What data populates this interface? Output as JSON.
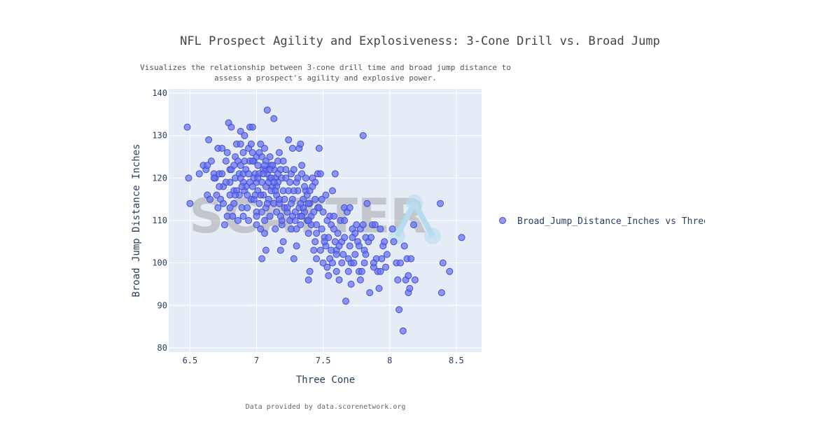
{
  "chart_data": {
    "type": "scatter",
    "title": "NFL Prospect Agility and Explosiveness: 3-Cone Drill vs. Broad Jump",
    "subtitle_lines": [
      "Visualizes the relationship between 3-cone drill time and broad jump distance to",
      "assess a prospect's agility and explosive power."
    ],
    "xlabel": "Three Cone",
    "ylabel": "Broad Jump Distance Inches",
    "xlim": [
      6.34,
      8.69
    ],
    "ylim": [
      79,
      141
    ],
    "xticks": [
      "6.5",
      "7",
      "7.5",
      "8",
      "8.5"
    ],
    "yticks": [
      "80",
      "90",
      "100",
      "110",
      "120",
      "130",
      "140"
    ],
    "grid": true,
    "legend": {
      "position": "right",
      "label": "Broad_Jump_Distance_Inches vs Three Cone"
    },
    "footer": "Data provided by data.scorenetwork.org",
    "watermark": "SCATTER",
    "series": [
      {
        "color": "#636efa",
        "points": [
          [
            6.48,
            132
          ],
          [
            6.49,
            120
          ],
          [
            6.5,
            114
          ],
          [
            6.57,
            121
          ],
          [
            6.6,
            123
          ],
          [
            6.62,
            122
          ],
          [
            6.63,
            123
          ],
          [
            6.63,
            116
          ],
          [
            6.64,
            129
          ],
          [
            6.65,
            115
          ],
          [
            6.66,
            124
          ],
          [
            6.68,
            121
          ],
          [
            6.69,
            120
          ],
          [
            6.7,
            116
          ],
          [
            6.71,
            113
          ],
          [
            6.71,
            127
          ],
          [
            6.72,
            121
          ],
          [
            6.73,
            115
          ],
          [
            6.74,
            127
          ],
          [
            6.75,
            114
          ],
          [
            6.75,
            118
          ],
          [
            6.76,
            109
          ],
          [
            6.77,
            124
          ],
          [
            6.78,
            126
          ],
          [
            6.78,
            111
          ],
          [
            6.79,
            133
          ],
          [
            6.8,
            122
          ],
          [
            6.8,
            119
          ],
          [
            6.8,
            116
          ],
          [
            6.81,
            132
          ],
          [
            6.81,
            122
          ],
          [
            6.82,
            111
          ],
          [
            6.83,
            117
          ],
          [
            6.83,
            114
          ],
          [
            6.84,
            125
          ],
          [
            6.84,
            120
          ],
          [
            6.85,
            128
          ],
          [
            6.85,
            117
          ],
          [
            6.86,
            124
          ],
          [
            6.87,
            121
          ],
          [
            6.87,
            116
          ],
          [
            6.88,
            131
          ],
          [
            6.88,
            128
          ],
          [
            6.88,
            123
          ],
          [
            6.89,
            113
          ],
          [
            6.9,
            126
          ],
          [
            6.9,
            121
          ],
          [
            6.9,
            119
          ],
          [
            6.91,
            130
          ],
          [
            6.91,
            124
          ],
          [
            6.91,
            117
          ],
          [
            6.92,
            122
          ],
          [
            6.93,
            116
          ],
          [
            6.94,
            127
          ],
          [
            6.94,
            121
          ],
          [
            6.94,
            110
          ],
          [
            6.95,
            132
          ],
          [
            6.95,
            119
          ],
          [
            6.96,
            128
          ],
          [
            6.96,
            115
          ],
          [
            6.97,
            132
          ],
          [
            6.97,
            126
          ],
          [
            6.97,
            118
          ],
          [
            6.98,
            124
          ],
          [
            6.98,
            115
          ],
          [
            6.99,
            121
          ],
          [
            7.0,
            125
          ],
          [
            7.0,
            119
          ],
          [
            7.0,
            112
          ],
          [
            7.0,
            109
          ],
          [
            7.01,
            123
          ],
          [
            7.01,
            117
          ],
          [
            7.02,
            121
          ],
          [
            7.02,
            114
          ],
          [
            7.03,
            128
          ],
          [
            7.03,
            108
          ],
          [
            7.04,
            125
          ],
          [
            7.04,
            119
          ],
          [
            7.04,
            101
          ],
          [
            7.05,
            122
          ],
          [
            7.05,
            116
          ],
          [
            7.06,
            127
          ],
          [
            7.06,
            110
          ],
          [
            7.06,
            107
          ],
          [
            7.07,
            124
          ],
          [
            7.07,
            118
          ],
          [
            7.07,
            113
          ],
          [
            7.07,
            103
          ],
          [
            7.08,
            136
          ],
          [
            7.08,
            121
          ],
          [
            7.09,
            115
          ],
          [
            7.1,
            125
          ],
          [
            7.1,
            120
          ],
          [
            7.1,
            111
          ],
          [
            7.11,
            123
          ],
          [
            7.11,
            117
          ],
          [
            7.12,
            118
          ],
          [
            7.13,
            134
          ],
          [
            7.13,
            122
          ],
          [
            7.13,
            114
          ],
          [
            7.14,
            120
          ],
          [
            7.14,
            108
          ],
          [
            7.15,
            116
          ],
          [
            7.15,
            112
          ],
          [
            7.16,
            124
          ],
          [
            7.16,
            119
          ],
          [
            7.17,
            126
          ],
          [
            7.17,
            114
          ],
          [
            7.18,
            122
          ],
          [
            7.18,
            103
          ],
          [
            7.19,
            120
          ],
          [
            7.19,
            109
          ],
          [
            7.2,
            124
          ],
          [
            7.2,
            117
          ],
          [
            7.2,
            105
          ],
          [
            7.21,
            113
          ],
          [
            7.22,
            120
          ],
          [
            7.23,
            112
          ],
          [
            7.24,
            129
          ],
          [
            7.24,
            117
          ],
          [
            7.25,
            110
          ],
          [
            7.26,
            121
          ],
          [
            7.26,
            108
          ],
          [
            7.27,
            127
          ],
          [
            7.27,
            115
          ],
          [
            7.28,
            122
          ],
          [
            7.28,
            101
          ],
          [
            7.29,
            112
          ],
          [
            7.3,
            119
          ],
          [
            7.3,
            104
          ],
          [
            7.31,
            117
          ],
          [
            7.32,
            127
          ],
          [
            7.32,
            113
          ],
          [
            7.33,
            128
          ],
          [
            7.33,
            109
          ],
          [
            7.34,
            121
          ],
          [
            7.34,
            123
          ],
          [
            7.35,
            115
          ],
          [
            7.36,
            112
          ],
          [
            7.37,
            120
          ],
          [
            7.37,
            117
          ],
          [
            7.38,
            110
          ],
          [
            7.39,
            107
          ],
          [
            7.39,
            96
          ],
          [
            7.4,
            98
          ],
          [
            7.4,
            114
          ],
          [
            7.41,
            111
          ],
          [
            7.42,
            120
          ],
          [
            7.43,
            103
          ],
          [
            7.44,
            115
          ],
          [
            7.44,
            105
          ],
          [
            7.45,
            109
          ],
          [
            7.45,
            101
          ],
          [
            7.46,
            121
          ],
          [
            7.46,
            113
          ],
          [
            7.47,
            127
          ],
          [
            7.48,
            103
          ],
          [
            7.48,
            121
          ],
          [
            7.49,
            108
          ],
          [
            7.5,
            112
          ],
          [
            7.5,
            100
          ],
          [
            7.51,
            106
          ],
          [
            7.52,
            116
          ],
          [
            7.52,
            104
          ],
          [
            7.53,
            99
          ],
          [
            7.54,
            106
          ],
          [
            7.54,
            97
          ],
          [
            7.55,
            111
          ],
          [
            7.55,
            101
          ],
          [
            7.56,
            109
          ],
          [
            7.57,
            117
          ],
          [
            7.57,
            100
          ],
          [
            7.58,
            111
          ],
          [
            7.59,
            105
          ],
          [
            7.59,
            121
          ],
          [
            7.6,
            103
          ],
          [
            7.6,
            98
          ],
          [
            7.61,
            107
          ],
          [
            7.62,
            96
          ],
          [
            7.63,
            110
          ],
          [
            7.64,
            105
          ],
          [
            7.65,
            102
          ],
          [
            7.66,
            113
          ],
          [
            7.66,
            110
          ],
          [
            7.67,
            91
          ],
          [
            7.68,
            112
          ],
          [
            7.69,
            101
          ],
          [
            7.7,
            113
          ],
          [
            7.71,
            100
          ],
          [
            7.71,
            95
          ],
          [
            7.72,
            108
          ],
          [
            7.73,
            100
          ],
          [
            7.74,
            107
          ],
          [
            7.75,
            109
          ],
          [
            7.76,
            105
          ],
          [
            7.77,
            98
          ],
          [
            7.78,
            96
          ],
          [
            7.78,
            108
          ],
          [
            7.79,
            98
          ],
          [
            7.8,
            109
          ],
          [
            7.8,
            130
          ],
          [
            7.81,
            103
          ],
          [
            7.81,
            100
          ],
          [
            7.82,
            106
          ],
          [
            7.83,
            114
          ],
          [
            7.84,
            105
          ],
          [
            7.85,
            93
          ],
          [
            7.86,
            106
          ],
          [
            7.87,
            109
          ],
          [
            7.88,
            99
          ],
          [
            7.89,
            109
          ],
          [
            7.9,
            101
          ],
          [
            7.91,
            98
          ],
          [
            7.92,
            94
          ],
          [
            7.93,
            108
          ],
          [
            7.94,
            101
          ],
          [
            7.95,
            104
          ],
          [
            7.96,
            105
          ],
          [
            7.97,
            99
          ],
          [
            8.02,
            108
          ],
          [
            8.05,
            100
          ],
          [
            8.06,
            96
          ],
          [
            8.07,
            89
          ],
          [
            8.1,
            84
          ],
          [
            8.11,
            104
          ],
          [
            8.12,
            96
          ],
          [
            8.13,
            101
          ],
          [
            8.14,
            93
          ],
          [
            8.15,
            94
          ],
          [
            8.16,
            101
          ],
          [
            8.18,
            109
          ],
          [
            8.19,
            96
          ],
          [
            8.38,
            114
          ],
          [
            8.39,
            93
          ],
          [
            8.4,
            100
          ],
          [
            8.45,
            98
          ],
          [
            8.54,
            106
          ],
          [
            7.07,
            122
          ],
          [
            7.09,
            119
          ],
          [
            7.11,
            120
          ],
          [
            6.92,
            118
          ],
          [
            6.88,
            120
          ],
          [
            7.03,
            116
          ],
          [
            7.15,
            118
          ],
          [
            7.21,
            115
          ],
          [
            7.26,
            114
          ],
          [
            7.35,
            113
          ],
          [
            7.38,
            116
          ],
          [
            7.43,
            112
          ],
          [
            7.47,
            113
          ],
          [
            7.05,
            121
          ],
          [
            7.12,
            123
          ],
          [
            6.95,
            124
          ],
          [
            6.98,
            120
          ],
          [
            6.89,
            118
          ],
          [
            6.84,
            116
          ],
          [
            7.19,
            110
          ],
          [
            7.29,
            110
          ],
          [
            7.33,
            111
          ],
          [
            7.39,
            114
          ],
          [
            7.41,
            109
          ],
          [
            6.93,
            113
          ],
          [
            6.86,
            110
          ],
          [
            7.08,
            114
          ],
          [
            7.14,
            117
          ],
          [
            7.01,
            120
          ],
          [
            6.99,
            116
          ],
          [
            7.16,
            121
          ],
          [
            7.22,
            122
          ],
          [
            7.25,
            119
          ],
          [
            7.31,
            120
          ],
          [
            7.36,
            118
          ],
          [
            7.4,
            117
          ],
          [
            7.44,
            119
          ],
          [
            7.49,
            115
          ],
          [
            6.77,
            119
          ],
          [
            6.74,
            121
          ],
          [
            6.83,
            123
          ],
          [
            6.97,
            124
          ],
          [
            7.02,
            126
          ],
          [
            7.06,
            123
          ],
          [
            7.1,
            122
          ],
          [
            7.13,
            119
          ],
          [
            7.17,
            115
          ],
          [
            7.23,
            113
          ],
          [
            7.27,
            111
          ],
          [
            7.3,
            108
          ],
          [
            7.34,
            111
          ],
          [
            7.39,
            110
          ],
          [
            7.45,
            107
          ],
          [
            7.51,
            105
          ],
          [
            7.56,
            103
          ],
          [
            7.6,
            102
          ],
          [
            7.64,
            100
          ],
          [
            7.69,
            98
          ],
          [
            7.72,
            106
          ],
          [
            7.77,
            104
          ],
          [
            7.82,
            102
          ],
          [
            7.88,
            100
          ],
          [
            7.93,
            98
          ],
          [
            7.98,
            102
          ],
          [
            8.03,
            105
          ],
          [
            8.08,
            100
          ],
          [
            8.14,
            97
          ],
          [
            6.72,
            118
          ],
          [
            6.68,
            120
          ],
          [
            6.8,
            113
          ],
          [
            6.9,
            111
          ],
          [
            7.0,
            111
          ],
          [
            7.04,
            112
          ],
          [
            7.18,
            111
          ],
          [
            7.28,
            117
          ],
          [
            7.33,
            114
          ],
          [
            7.42,
            118
          ],
          [
            7.53,
            110
          ],
          [
            7.58,
            108
          ],
          [
            7.62,
            104
          ],
          [
            7.66,
            106
          ],
          [
            7.7,
            104
          ],
          [
            7.74,
            102
          ]
        ]
      }
    ]
  }
}
